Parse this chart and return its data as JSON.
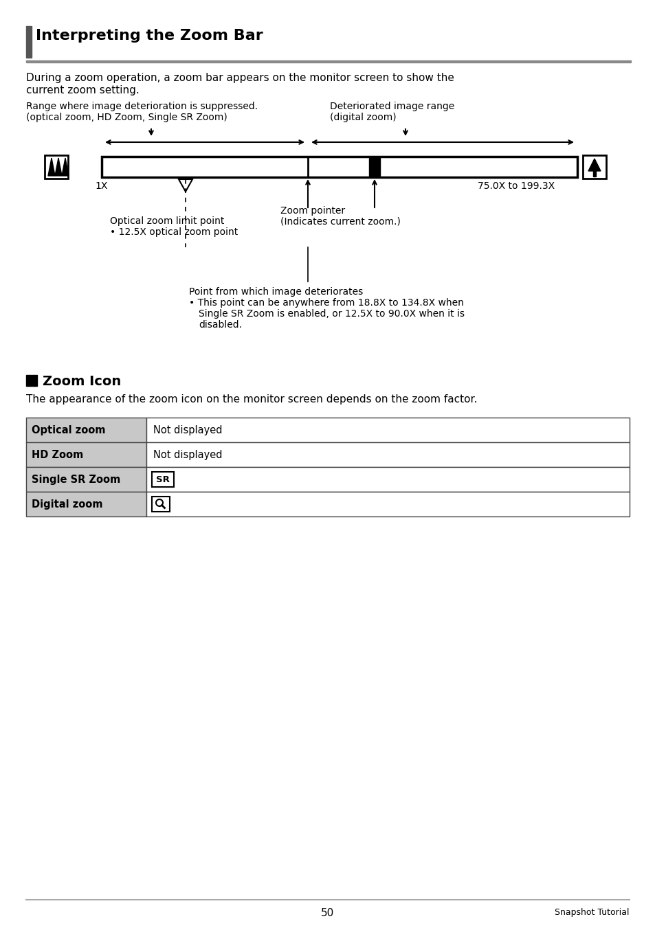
{
  "title": "Interpreting the Zoom Bar",
  "bg_color": "#ffffff",
  "text_color": "#000000",
  "intro_text_1": "During a zoom operation, a zoom bar appears on the monitor screen to show the",
  "intro_text_2": "current zoom setting.",
  "label_left_line1": "Range where image deterioration is suppressed.",
  "label_left_line2": "(optical zoom, HD Zoom, Single SR Zoom)",
  "label_right_line1": "Deteriorated image range",
  "label_right_line2": "(digital zoom)",
  "label_1x": "1X",
  "label_max": "75.0X to 199.3X",
  "label_optical": "Optical zoom limit point",
  "label_optical2": "• 12.5X optical zoom point",
  "label_zoom_pointer": "Zoom pointer",
  "label_zoom_pointer2": "(Indicates current zoom.)",
  "label_deteriorates": "Point from which image deteriorates",
  "label_deteriorates2": "• This point can be anywhere from 18.8X to 134.8X when",
  "label_deteriorates3": "Single SR Zoom is enabled, or 12.5X to 90.0X when it is",
  "label_deteriorates4": "disabled.",
  "section2_title": "Zoom Icon",
  "section2_intro": "The appearance of the zoom icon on the monitor screen depends on the zoom factor.",
  "table_rows": [
    [
      "Optical zoom",
      "Not displayed"
    ],
    [
      "HD Zoom",
      "Not displayed"
    ],
    [
      "Single SR Zoom",
      "SR_icon"
    ],
    [
      "Digital zoom",
      "Q_icon"
    ]
  ],
  "page_number": "50",
  "page_label": "Snapshot Tutorial"
}
